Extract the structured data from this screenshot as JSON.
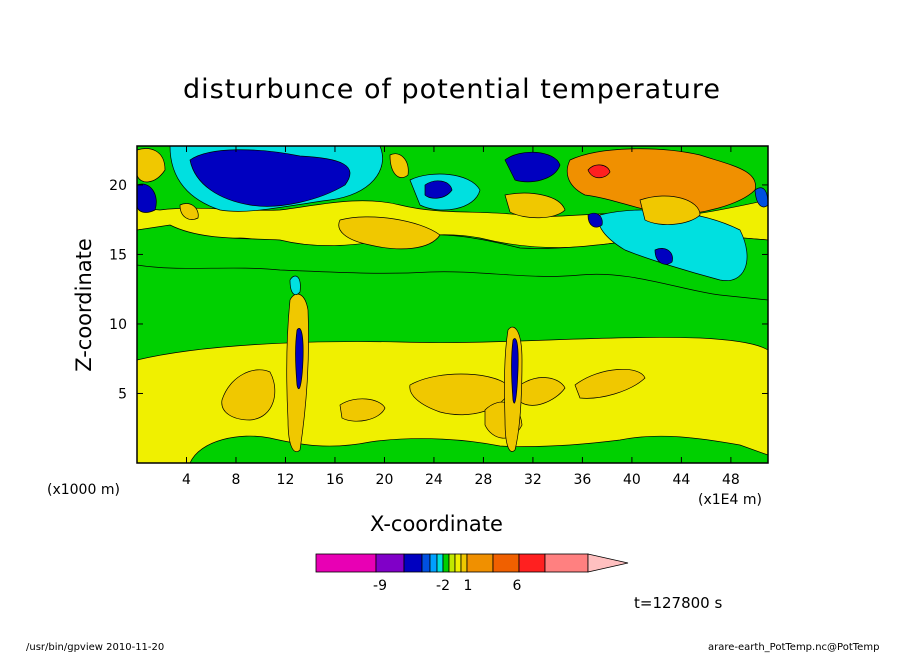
{
  "title": "disturbunce of potential temperature",
  "chart_data": {
    "type": "heatmap",
    "xlabel": "X-coordinate",
    "ylabel": "Z-coordinate",
    "x_ticks": [
      "4",
      "8",
      "12",
      "16",
      "20",
      "24",
      "28",
      "32",
      "36",
      "40",
      "44",
      "48"
    ],
    "y_ticks": [
      "5",
      "10",
      "15",
      "20"
    ],
    "x_unit_left": "(x1000 m)",
    "x_unit_right": "(x1E4 m)",
    "xlim": [
      0,
      51
    ],
    "ylim": [
      0,
      22.8
    ],
    "colorbar": {
      "labels": [
        "-9",
        "-2",
        "1",
        "6"
      ],
      "colors": [
        "#e800b4",
        "#8000c8",
        "#0000c0",
        "#0050e0",
        "#00a0ff",
        "#00e0e0",
        "#00d000",
        "#c0e800",
        "#f0f000",
        "#f0c800",
        "#f09000",
        "#f06000",
        "#ff2020",
        "#ff8080",
        "#ffc0c0"
      ]
    },
    "time_label": "t=127800 s"
  },
  "footer": {
    "left": "/usr/bin/gpview  2010-11-20",
    "right": "arare-earth_PotTemp.nc@PotTemp"
  }
}
